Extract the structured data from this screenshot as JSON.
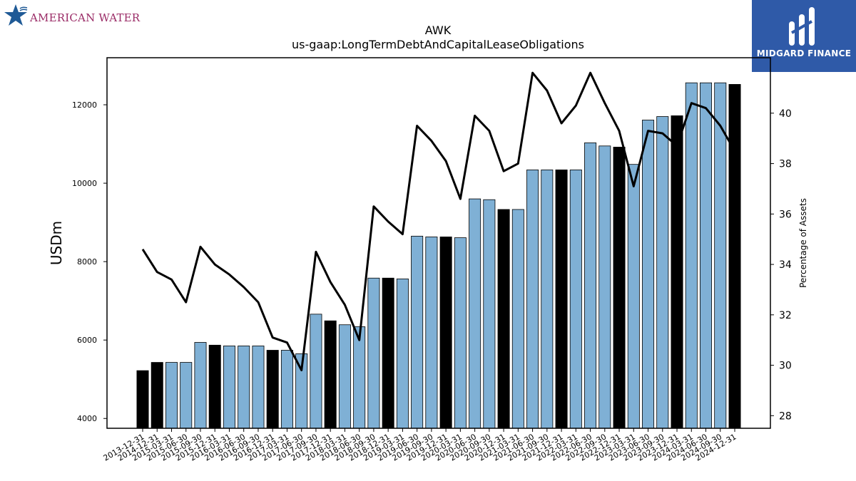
{
  "logos": {
    "left_text": "AMERICAN WATER",
    "right_text": "MIDGARD FINANCE"
  },
  "colors": {
    "bar_regular": "#7fb0d5",
    "bar_year_end": "#000000",
    "line": "#000000",
    "logo_left_text": "#9a2b66",
    "logo_left_star": "#1f5a96",
    "logo_right_bg": "#2f5aa8"
  },
  "chart_data": {
    "type": "bar",
    "title": "AWK",
    "subtitle": "us-gaap:LongTermDebtAndCapitalLeaseObligations",
    "ylabel": "USDm",
    "y2label": "Percentage of Assets",
    "ylim": [
      3750,
      13200
    ],
    "y2lim": [
      27.5,
      42.2
    ],
    "yticks": [
      4000,
      6000,
      8000,
      10000,
      12000
    ],
    "y2ticks": [
      28,
      30,
      32,
      34,
      36,
      38,
      40
    ],
    "categories": [
      "2013-12-31",
      "2014-12-31",
      "2015-03-31",
      "2015-06-30",
      "2015-09-30",
      "2015-12-31",
      "2016-03-31",
      "2016-06-30",
      "2016-09-30",
      "2016-12-31",
      "2017-03-31",
      "2017-06-30",
      "2017-09-30",
      "2017-12-31",
      "2018-03-31",
      "2018-06-30",
      "2018-09-30",
      "2018-12-31",
      "2019-03-31",
      "2019-06-30",
      "2019-09-30",
      "2019-12-31",
      "2020-03-31",
      "2020-06-30",
      "2020-09-30",
      "2020-12-31",
      "2021-03-31",
      "2021-06-30",
      "2021-09-30",
      "2021-12-31",
      "2022-03-31",
      "2022-06-30",
      "2022-09-30",
      "2022-12-31",
      "2023-03-31",
      "2023-06-30",
      "2023-09-30",
      "2023-12-31",
      "2024-03-31",
      "2024-06-30",
      "2024-09-30",
      "2024-12-31"
    ],
    "series": [
      {
        "values": [
          5220,
          5430,
          5430,
          5430,
          5940,
          5870,
          5850,
          5850,
          5850,
          5740,
          5740,
          5650,
          6660,
          6490,
          6390,
          6340,
          7580,
          7580,
          7560,
          8650,
          8630,
          8630,
          8610,
          9600,
          9580,
          9330,
          9330,
          10340,
          10340,
          10340,
          10340,
          11030,
          10950,
          10920,
          10480,
          11610,
          11700,
          11720,
          12560,
          12560,
          12560,
          12520
        ]
      },
      {
        "values": [
          34.6,
          33.7,
          33.4,
          32.5,
          34.7,
          34.0,
          33.6,
          33.1,
          32.5,
          31.1,
          30.9,
          29.8,
          34.5,
          33.3,
          32.4,
          31.0,
          36.3,
          35.7,
          35.2,
          39.5,
          38.9,
          38.1,
          36.6,
          39.9,
          39.3,
          37.7,
          38.0,
          41.6,
          40.9,
          39.6,
          40.3,
          41.6,
          40.4,
          39.3,
          37.1,
          39.3,
          39.2,
          38.7,
          40.4,
          40.2,
          39.5,
          38.5
        ]
      }
    ],
    "year_end_flags": [
      true,
      true,
      false,
      false,
      false,
      true,
      false,
      false,
      false,
      true,
      false,
      false,
      false,
      true,
      false,
      false,
      false,
      true,
      false,
      false,
      false,
      true,
      false,
      false,
      false,
      true,
      false,
      false,
      false,
      true,
      false,
      false,
      false,
      true,
      false,
      false,
      false,
      true,
      false,
      false,
      false,
      true
    ],
    "grid": false,
    "legend": "none"
  }
}
